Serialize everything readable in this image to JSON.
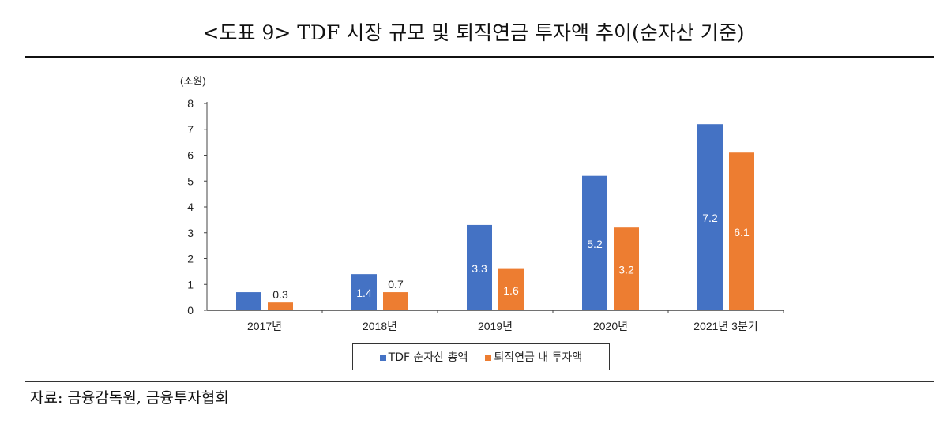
{
  "title": "<도표 9> TDF 시장 규모 및 퇴직연금 투자액 추이(순자산 기준)",
  "source": "자료: 금융감독원, 금융투자협회",
  "chart_data": {
    "type": "bar",
    "unit_label": "(조원)",
    "categories": [
      "2017년",
      "2018년",
      "2019년",
      "2020년",
      "2021년 3분기"
    ],
    "ylim": [
      0,
      8
    ],
    "yticks": [
      "0",
      "1",
      "2",
      "3",
      "4",
      "5",
      "6",
      "7",
      "8"
    ],
    "grid": false,
    "legend_position": "bottom",
    "series": [
      {
        "name": "TDF 순자산 총액",
        "color": "#4472C4",
        "values": [
          0.7,
          1.4,
          3.3,
          5.2,
          7.2
        ],
        "labels": [
          null,
          "1.4",
          "3.3",
          "5.2",
          "7.2"
        ]
      },
      {
        "name": "퇴직연금 내 투자액",
        "color": "#ED7D31",
        "values": [
          0.3,
          0.7,
          1.6,
          3.2,
          6.1
        ],
        "labels": [
          "0.3",
          "0.7",
          "1.6",
          "3.2",
          "6.1"
        ]
      }
    ]
  }
}
